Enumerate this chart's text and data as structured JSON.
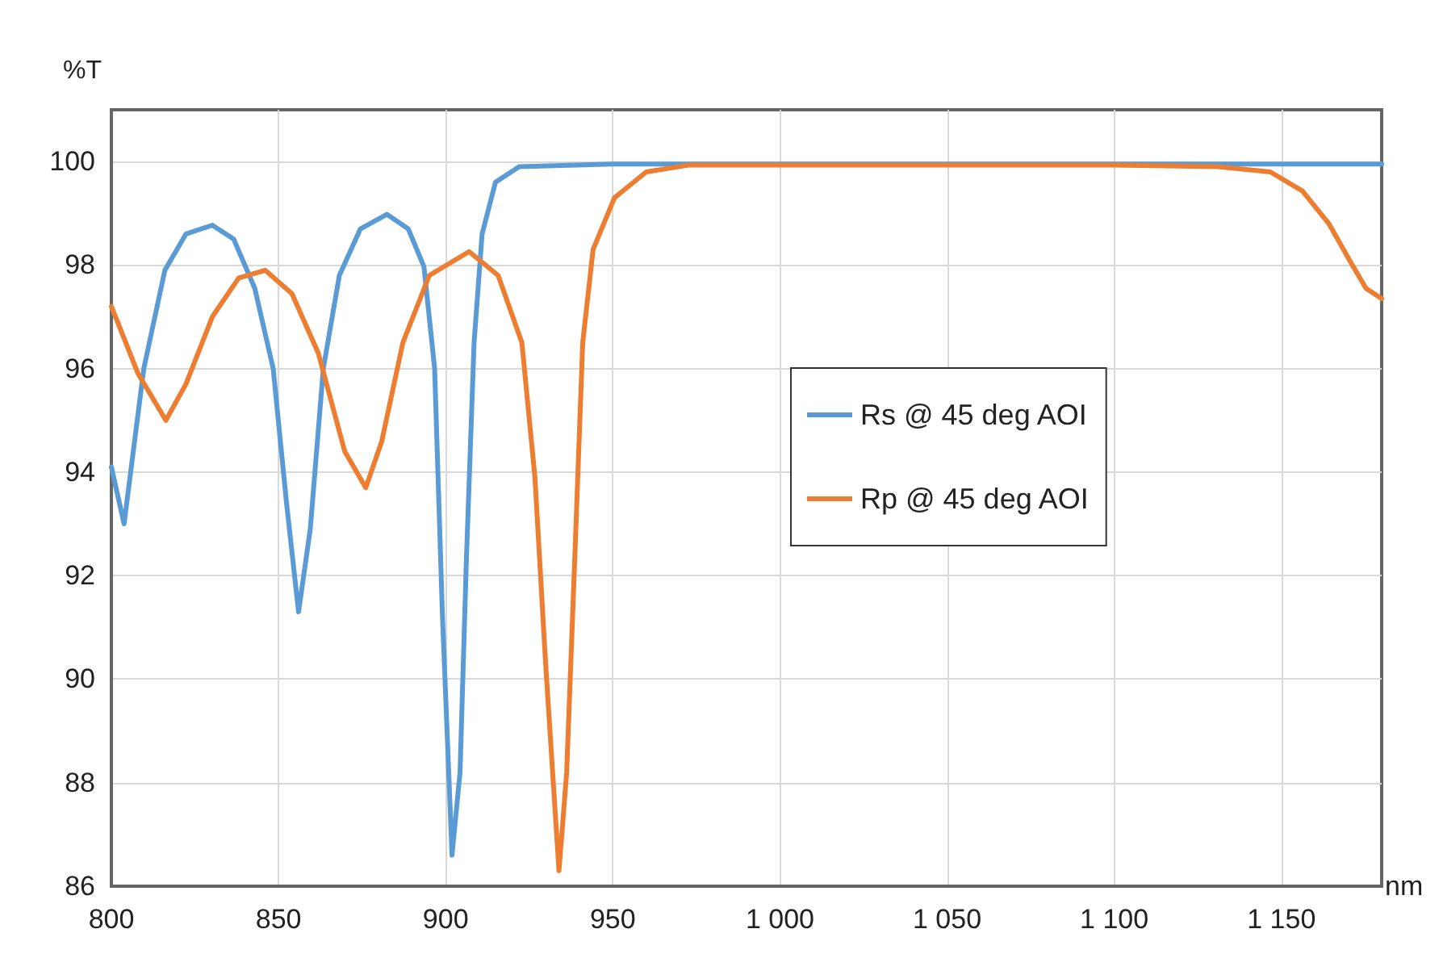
{
  "chart_data": {
    "type": "line",
    "xlabel": "nm",
    "ylabel": "%T",
    "xlim": [
      800,
      1180
    ],
    "xticks": [
      800,
      850,
      900,
      950,
      {
        "value": 1000,
        "label": "1 000"
      },
      {
        "value": 1050,
        "label": "1 050"
      },
      {
        "value": 1100,
        "label": "1 100"
      },
      {
        "value": 1150,
        "label": "1 150"
      }
    ],
    "ylim": [
      86,
      101
    ],
    "yticks": [
      86,
      88,
      90,
      92,
      94,
      96,
      98,
      100
    ],
    "grid": true,
    "legend": "right",
    "marker": "none",
    "line_style": "solid",
    "series": [
      {
        "name": "Rs @ 45 deg AOI",
        "color": "#5b9bd5",
        "x": [
          800,
          803.8,
          809.7,
          816,
          822.3,
          830.2,
          836.6,
          842.9,
          848.4,
          852.4,
          856,
          859.5,
          863.4,
          868.2,
          874.5,
          882.4,
          888.8,
          893.5,
          896.7,
          899,
          901.9,
          904.3,
          906.2,
          908.5,
          910.9,
          914.9,
          922,
          950,
          1000,
          1050,
          1100,
          1150,
          1180
        ],
        "values": [
          94.1,
          93.0,
          96.0,
          97.9,
          98.6,
          98.77,
          98.5,
          97.55,
          96.0,
          93.4,
          91.3,
          92.9,
          96.0,
          97.8,
          98.7,
          98.98,
          98.7,
          97.97,
          96.0,
          91.3,
          86.6,
          88.2,
          92.3,
          96.5,
          98.6,
          99.6,
          99.9,
          99.95,
          99.95,
          99.95,
          99.95,
          99.95,
          99.95
        ]
      },
      {
        "name": "Rp @ 45 deg AOI",
        "color": "#ed7d31",
        "x": [
          800,
          808,
          816.3,
          822.3,
          830.2,
          838.1,
          846,
          854,
          861.9,
          869.8,
          876.1,
          880.9,
          887.2,
          895.1,
          907,
          915.7,
          922.8,
          926.7,
          929.9,
          933.9,
          936.2,
          938.6,
          941,
          944.1,
          950.5,
          960,
          972.6,
          1000,
          1050,
          1100,
          1131,
          1146.7,
          1156.3,
          1164.2,
          1170.5,
          1175.3,
          1180
        ],
        "values": [
          97.2,
          95.9,
          95.0,
          95.7,
          97.0,
          97.75,
          97.9,
          97.45,
          96.3,
          94.4,
          93.7,
          94.6,
          96.5,
          97.8,
          98.26,
          97.8,
          96.5,
          93.9,
          90.3,
          86.3,
          88.2,
          92.3,
          96.5,
          98.3,
          99.3,
          99.8,
          99.93,
          99.93,
          99.93,
          99.93,
          99.9,
          99.8,
          99.43,
          98.8,
          98.08,
          97.55,
          97.35
        ]
      }
    ]
  }
}
